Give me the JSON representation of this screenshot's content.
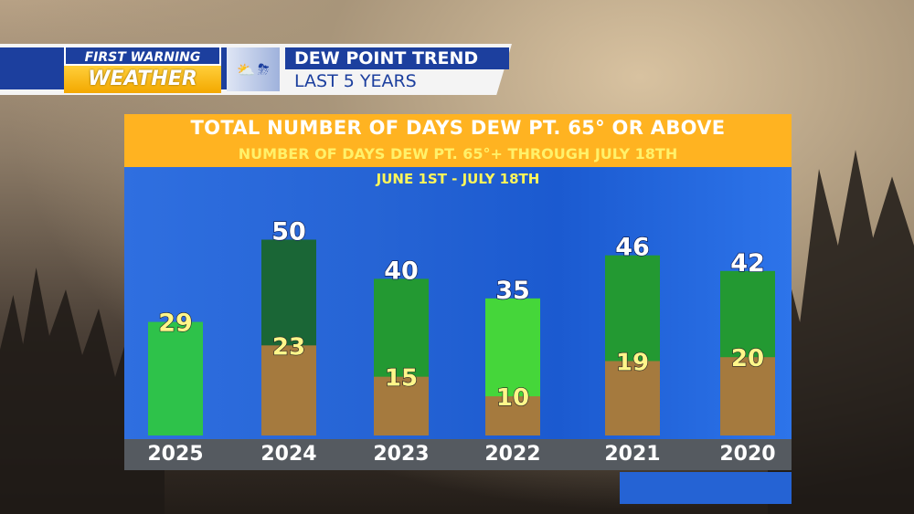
{
  "header": {
    "logo_top": "FIRST WARNING",
    "logo_bottom": "WEATHER",
    "title_line1": "DEW POINT TREND",
    "title_line2": "LAST 5 YEARS"
  },
  "chart_data": {
    "type": "bar",
    "title": "TOTAL NUMBER OF DAYS DEW PT. 65° OR ABOVE",
    "subtitle": "NUMBER OF DAYS DEW PT. 65°+ THROUGH JULY 18TH",
    "period": "JUNE 1ST - JULY 18TH",
    "categories": [
      "2025",
      "2024",
      "2023",
      "2022",
      "2021",
      "2020"
    ],
    "series": [
      {
        "name": "",
        "values": [
          29,
          50,
          40,
          35,
          46,
          42
        ]
      },
      {
        "name": "",
        "values": [
          29,
          23,
          15,
          10,
          19,
          20
        ]
      }
    ],
    "ylim": [
      0,
      60
    ],
    "colors": {
      "total_top": [
        "#2ec24a",
        "#1a6636",
        "#239932",
        "#45d63a",
        "#239932",
        "#239932"
      ],
      "through_july18": "#a57a3e",
      "total_label": "#ffffff",
      "partial_label": "#fff68a"
    }
  }
}
